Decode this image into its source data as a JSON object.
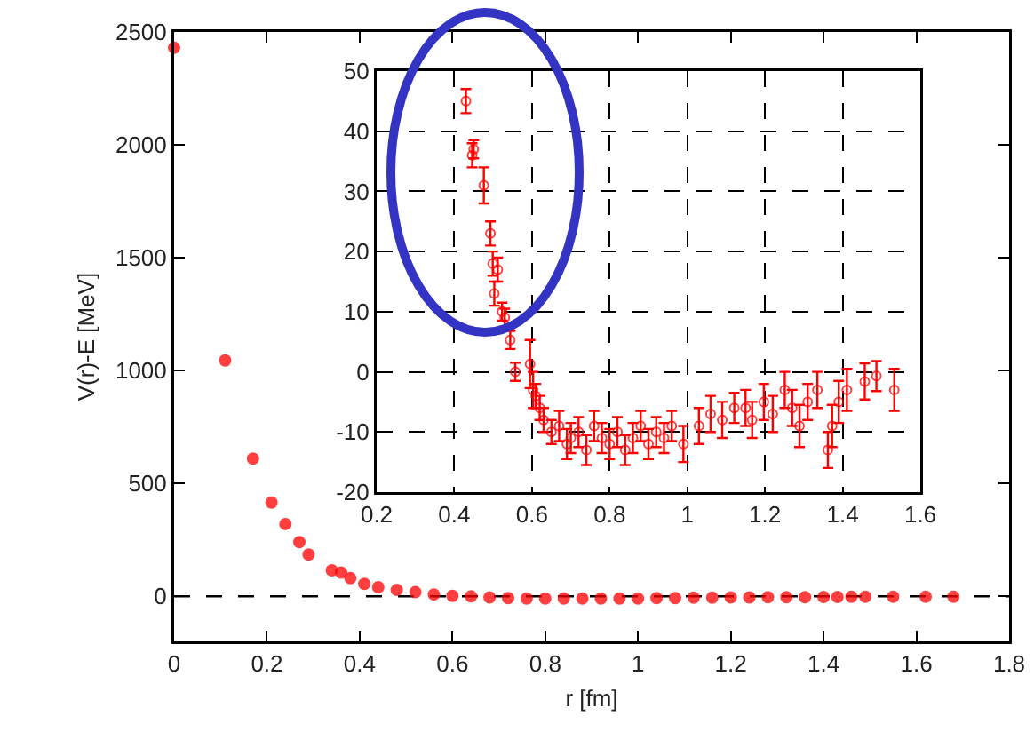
{
  "chart_data": [
    {
      "type": "scatter",
      "xlabel": "r [fm]",
      "ylabel": "V(r)-E [MeV]",
      "xlim": [
        0,
        1.8
      ],
      "ylim": [
        -200,
        2500
      ],
      "xticks": [
        0,
        0.2,
        0.4,
        0.6,
        0.8,
        1,
        1.2,
        1.4,
        1.6,
        1.8
      ],
      "yticks": [
        0,
        500,
        1000,
        1500,
        2000,
        2500
      ],
      "grid": false,
      "marker": "circle",
      "ref_lines": [
        {
          "axis": "y",
          "value": 0,
          "line_style": "dashed",
          "color": "#000000"
        }
      ],
      "series": [
        {
          "color": "#ff0000",
          "x": [
            0,
            0.11,
            0.17,
            0.21,
            0.24,
            0.27,
            0.29,
            0.34,
            0.36,
            0.38,
            0.41,
            0.44,
            0.48,
            0.52,
            0.56,
            0.6,
            0.64,
            0.68,
            0.72,
            0.76,
            0.8,
            0.84,
            0.88,
            0.92,
            0.96,
            1,
            1.04,
            1.08,
            1.12,
            1.16,
            1.2,
            1.24,
            1.28,
            1.32,
            1.36,
            1.4,
            1.43,
            1.46,
            1.49,
            1.55,
            1.62,
            1.68
          ],
          "values": [
            2430,
            1045,
            610,
            415,
            320,
            240,
            185,
            115,
            105,
            80,
            55,
            40,
            28,
            18,
            8,
            2,
            0,
            -5,
            -8,
            -10,
            -10,
            -10,
            -10,
            -10,
            -10,
            -10,
            -8,
            -8,
            -6,
            -6,
            -5,
            -5,
            -4,
            -4,
            -4,
            -3,
            -3,
            -2,
            -2,
            -2,
            -2,
            -2
          ]
        }
      ]
    },
    {
      "type": "scatter",
      "xlim": [
        0.2,
        1.6
      ],
      "ylim": [
        -20,
        50
      ],
      "xticks": [
        0.2,
        0.4,
        0.6,
        0.8,
        1,
        1.2,
        1.4,
        1.6
      ],
      "yticks": [
        -20,
        -10,
        0,
        10,
        20,
        30,
        40,
        50
      ],
      "grid": true,
      "marker": "circle",
      "series": [
        {
          "color": "#ff0000",
          "x": [
            0.43,
            0.446,
            0.45,
            0.476,
            0.493,
            0.499,
            0.512,
            0.503,
            0.523,
            0.53,
            0.544,
            0.557,
            0.595,
            0.603,
            0.61,
            0.62,
            0.63,
            0.65,
            0.67,
            0.69,
            0.7,
            0.72,
            0.74,
            0.76,
            0.78,
            0.8,
            0.82,
            0.84,
            0.86,
            0.88,
            0.9,
            0.92,
            0.94,
            0.96,
            0.99,
            1.03,
            1.06,
            1.09,
            1.121,
            1.15,
            1.167,
            1.197,
            1.22,
            1.251,
            1.27,
            1.289,
            1.31,
            1.335,
            1.362,
            1.373,
            1.39,
            1.411,
            1.457,
            1.487,
            1.533
          ],
          "values": [
            45,
            36,
            37,
            31,
            23,
            18,
            17,
            13,
            10,
            9,
            5.3,
            0,
            1.3,
            -3,
            -4,
            -6,
            -8,
            -10,
            -9,
            -12,
            -11,
            -10,
            -13,
            -9,
            -11,
            -12,
            -10,
            -13,
            -11,
            -9,
            -12,
            -10,
            -11,
            -9,
            -12,
            -9,
            -7,
            -8,
            -6,
            -6,
            -8,
            -5,
            -7,
            -3,
            -6,
            -9,
            -5,
            -3,
            -13,
            -9,
            -5,
            -3,
            -1.6,
            -0.7,
            -3
          ],
          "errors": [
            2,
            2,
            1.5,
            3,
            2,
            2,
            2,
            2,
            1.5,
            1.5,
            1.5,
            1.5,
            4,
            3,
            2,
            2,
            2,
            2,
            2.5,
            2.5,
            2.5,
            2.5,
            2.5,
            2.5,
            2.5,
            2.5,
            2.5,
            2.5,
            2.5,
            2.5,
            2.5,
            2.5,
            2.5,
            2.5,
            3,
            3,
            3,
            3,
            2.5,
            3,
            3,
            3,
            3,
            3,
            3,
            3.5,
            3,
            3,
            3,
            3.5,
            3.5,
            3.5,
            3,
            2.5,
            3.5
          ]
        }
      ]
    }
  ]
}
